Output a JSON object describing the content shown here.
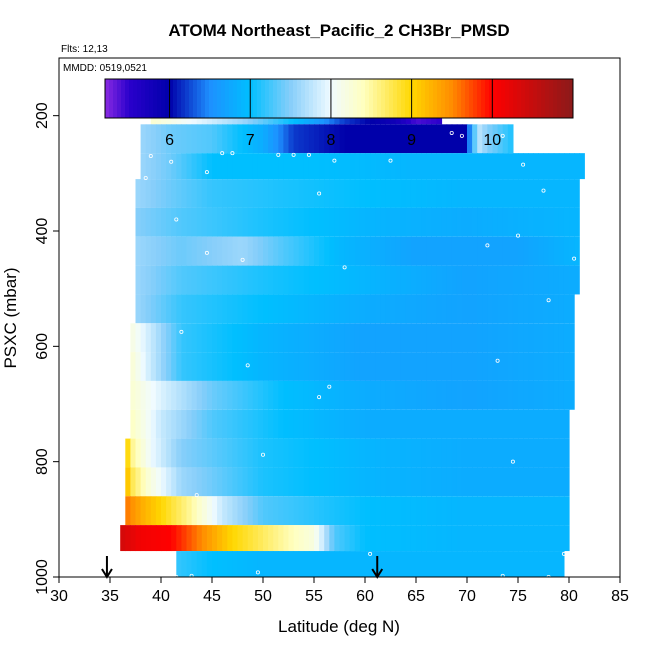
{
  "chart_data": {
    "type": "heatmap",
    "title": "ATOM4 Northeast_Pacific_2 CH3Br_PMSD",
    "flights_label": "Flts: 12,13",
    "date_label": "MMDD: 0519,0521",
    "xlabel": "Latitude (deg N)",
    "ylabel": "PSXC (mbar)",
    "xlim": [
      30,
      85
    ],
    "ylim": [
      1000,
      100
    ],
    "x_ticks": [
      "30",
      "35",
      "40",
      "45",
      "50",
      "55",
      "60",
      "65",
      "70",
      "75",
      "80",
      "85"
    ],
    "y_ticks": [
      "200",
      "400",
      "600",
      "800",
      "1000"
    ],
    "colorbar": {
      "range": [
        5.2,
        11.0
      ],
      "ticks": [
        "6",
        "7",
        "8",
        "9",
        "10"
      ],
      "stops": [
        {
          "v": 5.2,
          "c": "#8a2be2"
        },
        {
          "v": 5.5,
          "c": "#2a00cc"
        },
        {
          "v": 6.0,
          "c": "#0000aa"
        },
        {
          "v": 6.5,
          "c": "#1e90ff"
        },
        {
          "v": 7.0,
          "c": "#00bfff"
        },
        {
          "v": 7.5,
          "c": "#87cefa"
        },
        {
          "v": 8.0,
          "c": "#f0fbff"
        },
        {
          "v": 8.4,
          "c": "#ffffc0"
        },
        {
          "v": 9.0,
          "c": "#ffd700"
        },
        {
          "v": 9.5,
          "c": "#ff8c00"
        },
        {
          "v": 10.0,
          "c": "#ff0000"
        },
        {
          "v": 11.0,
          "c": "#8b1a1a"
        }
      ]
    },
    "arrows_latitude": [
      34.7,
      61.2
    ],
    "bands": [
      {
        "p_top": 170,
        "p_bot": 215,
        "lat_start": 39,
        "lat_end": 67.5,
        "knots": [
          [
            39,
            8.3
          ],
          [
            43,
            8.0
          ],
          [
            48,
            7.6
          ],
          [
            53,
            7.0
          ],
          [
            58,
            6.2
          ],
          [
            63,
            5.8
          ],
          [
            65,
            5.4
          ],
          [
            67.5,
            5.5
          ]
        ]
      },
      {
        "p_top": 215,
        "p_bot": 265,
        "lat_start": 38,
        "lat_end": 74.5,
        "knots": [
          [
            38,
            7.6
          ],
          [
            41,
            7.4
          ],
          [
            45,
            7.3
          ],
          [
            50,
            6.8
          ],
          [
            53,
            6.2
          ],
          [
            58,
            6.0
          ],
          [
            65,
            6.0
          ],
          [
            70,
            6.0
          ],
          [
            71,
            7.8
          ],
          [
            72,
            7.5
          ],
          [
            74.5,
            7.1
          ]
        ]
      },
      {
        "p_top": 265,
        "p_bot": 310,
        "lat_start": 38,
        "lat_end": 81.5,
        "knots": [
          [
            38,
            7.6
          ],
          [
            41,
            7.4
          ],
          [
            45,
            7.0
          ],
          [
            55,
            7.0
          ],
          [
            65,
            6.9
          ],
          [
            75,
            6.9
          ],
          [
            81.5,
            6.9
          ]
        ]
      },
      {
        "p_top": 310,
        "p_bot": 360,
        "lat_start": 37.5,
        "lat_end": 81,
        "knots": [
          [
            37.5,
            7.6
          ],
          [
            41,
            7.4
          ],
          [
            45,
            7.2
          ],
          [
            52,
            7.1
          ],
          [
            60,
            7.0
          ],
          [
            70,
            6.9
          ],
          [
            81,
            6.9
          ]
        ]
      },
      {
        "p_top": 360,
        "p_bot": 410,
        "lat_start": 37.5,
        "lat_end": 81,
        "knots": [
          [
            37.5,
            7.5
          ],
          [
            42,
            7.3
          ],
          [
            50,
            7.1
          ],
          [
            60,
            6.9
          ],
          [
            70,
            6.8
          ],
          [
            81,
            6.9
          ]
        ]
      },
      {
        "p_top": 410,
        "p_bot": 460,
        "lat_start": 37.5,
        "lat_end": 81,
        "knots": [
          [
            37.5,
            7.6
          ],
          [
            42,
            7.4
          ],
          [
            48,
            7.6
          ],
          [
            52,
            7.3
          ],
          [
            58,
            6.9
          ],
          [
            65,
            6.7
          ],
          [
            75,
            6.7
          ],
          [
            81,
            6.9
          ]
        ]
      },
      {
        "p_top": 460,
        "p_bot": 510,
        "lat_start": 37.5,
        "lat_end": 81,
        "knots": [
          [
            37.5,
            7.6
          ],
          [
            42,
            7.3
          ],
          [
            50,
            7.1
          ],
          [
            60,
            6.9
          ],
          [
            70,
            6.7
          ],
          [
            81,
            6.8
          ]
        ]
      },
      {
        "p_top": 510,
        "p_bot": 560,
        "lat_start": 37.5,
        "lat_end": 80.5,
        "knots": [
          [
            37.5,
            7.6
          ],
          [
            42,
            7.2
          ],
          [
            50,
            7.0
          ],
          [
            60,
            6.8
          ],
          [
            70,
            6.7
          ],
          [
            80.5,
            6.8
          ]
        ]
      },
      {
        "p_top": 560,
        "p_bot": 610,
        "lat_start": 37,
        "lat_end": 80.5,
        "knots": [
          [
            37,
            8.2
          ],
          [
            39,
            7.8
          ],
          [
            42,
            7.2
          ],
          [
            50,
            6.9
          ],
          [
            60,
            6.7
          ],
          [
            70,
            6.7
          ],
          [
            80.5,
            6.8
          ]
        ]
      },
      {
        "p_top": 610,
        "p_bot": 660,
        "lat_start": 37,
        "lat_end": 80.5,
        "knots": [
          [
            37,
            8.3
          ],
          [
            39,
            7.8
          ],
          [
            42,
            7.2
          ],
          [
            50,
            6.9
          ],
          [
            60,
            6.7
          ],
          [
            70,
            6.7
          ],
          [
            80.5,
            6.8
          ]
        ]
      },
      {
        "p_top": 660,
        "p_bot": 710,
        "lat_start": 37,
        "lat_end": 80.5,
        "knots": [
          [
            37,
            8.3
          ],
          [
            40,
            7.9
          ],
          [
            45,
            7.4
          ],
          [
            52,
            7.0
          ],
          [
            60,
            6.8
          ],
          [
            70,
            6.7
          ],
          [
            80.5,
            6.8
          ]
        ]
      },
      {
        "p_top": 710,
        "p_bot": 760,
        "lat_start": 37,
        "lat_end": 80,
        "knots": [
          [
            37,
            8.4
          ],
          [
            40,
            7.8
          ],
          [
            45,
            7.3
          ],
          [
            52,
            7.0
          ],
          [
            60,
            6.8
          ],
          [
            70,
            6.8
          ],
          [
            80,
            6.8
          ]
        ]
      },
      {
        "p_top": 760,
        "p_bot": 810,
        "lat_start": 36.5,
        "lat_end": 80,
        "knots": [
          [
            36.5,
            9.3
          ],
          [
            37,
            8.6
          ],
          [
            39,
            8.0
          ],
          [
            42,
            7.5
          ],
          [
            50,
            7.1
          ],
          [
            60,
            6.9
          ],
          [
            70,
            6.8
          ],
          [
            80,
            6.8
          ]
        ]
      },
      {
        "p_top": 810,
        "p_bot": 860,
        "lat_start": 36.5,
        "lat_end": 80,
        "knots": [
          [
            36.5,
            9.4
          ],
          [
            37,
            8.8
          ],
          [
            39,
            8.2
          ],
          [
            42,
            7.6
          ],
          [
            50,
            7.1
          ],
          [
            60,
            6.9
          ],
          [
            70,
            6.8
          ],
          [
            80,
            6.8
          ]
        ]
      },
      {
        "p_top": 860,
        "p_bot": 910,
        "lat_start": 36.5,
        "lat_end": 80,
        "knots": [
          [
            36.5,
            9.6
          ],
          [
            38,
            9.3
          ],
          [
            40,
            9.0
          ],
          [
            43,
            8.5
          ],
          [
            46,
            7.8
          ],
          [
            50,
            7.3
          ],
          [
            60,
            7.0
          ],
          [
            70,
            6.9
          ],
          [
            80,
            6.9
          ]
        ]
      },
      {
        "p_top": 910,
        "p_bot": 955,
        "lat_start": 36,
        "lat_end": 80,
        "knots": [
          [
            36,
            10.4
          ],
          [
            38,
            10.1
          ],
          [
            41,
            10.0
          ],
          [
            44,
            9.5
          ],
          [
            47,
            9.0
          ],
          [
            51,
            8.6
          ],
          [
            55,
            8.2
          ],
          [
            57,
            7.3
          ],
          [
            60,
            7.0
          ],
          [
            70,
            6.9
          ],
          [
            80,
            6.9
          ]
        ]
      },
      {
        "p_top": 955,
        "p_bot": 1000,
        "lat_start": 41.5,
        "lat_end": 79.5,
        "knots": [
          [
            41.5,
            7.2
          ],
          [
            45,
            7.0
          ],
          [
            50,
            6.9
          ],
          [
            60,
            6.9
          ],
          [
            70,
            6.9
          ],
          [
            79.5,
            6.9
          ]
        ]
      }
    ],
    "points": [
      [
        62.5,
        195
      ],
      [
        64.5,
        195
      ],
      [
        65.5,
        195
      ],
      [
        66.5,
        195
      ],
      [
        67.5,
        195
      ],
      [
        68.5,
        230
      ],
      [
        69.5,
        235
      ],
      [
        73.5,
        235
      ],
      [
        39.0,
        270
      ],
      [
        46.0,
        265
      ],
      [
        47.0,
        265
      ],
      [
        51.5,
        268
      ],
      [
        53.0,
        268
      ],
      [
        54.5,
        268
      ],
      [
        57.0,
        278
      ],
      [
        62.5,
        278
      ],
      [
        75.5,
        285
      ],
      [
        38.5,
        308
      ],
      [
        41.0,
        280
      ],
      [
        44.5,
        298
      ],
      [
        55.5,
        335
      ],
      [
        77.5,
        330
      ],
      [
        41.5,
        380
      ],
      [
        72.0,
        425
      ],
      [
        75.0,
        408
      ],
      [
        80.5,
        448
      ],
      [
        44.5,
        438
      ],
      [
        48.0,
        450
      ],
      [
        58.0,
        463
      ],
      [
        78.0,
        520
      ],
      [
        42.0,
        575
      ],
      [
        73.0,
        625
      ],
      [
        48.5,
        633
      ],
      [
        56.5,
        670
      ],
      [
        55.5,
        688
      ],
      [
        50.0,
        788
      ],
      [
        74.5,
        800
      ],
      [
        43.5,
        858
      ],
      [
        36.0,
        960
      ],
      [
        37.0,
        960
      ],
      [
        60.5,
        960
      ],
      [
        79.5,
        960
      ],
      [
        49.5,
        992
      ],
      [
        41.5,
        1000
      ],
      [
        43.0,
        998
      ],
      [
        73.5,
        998
      ],
      [
        78.0,
        1000
      ]
    ]
  }
}
